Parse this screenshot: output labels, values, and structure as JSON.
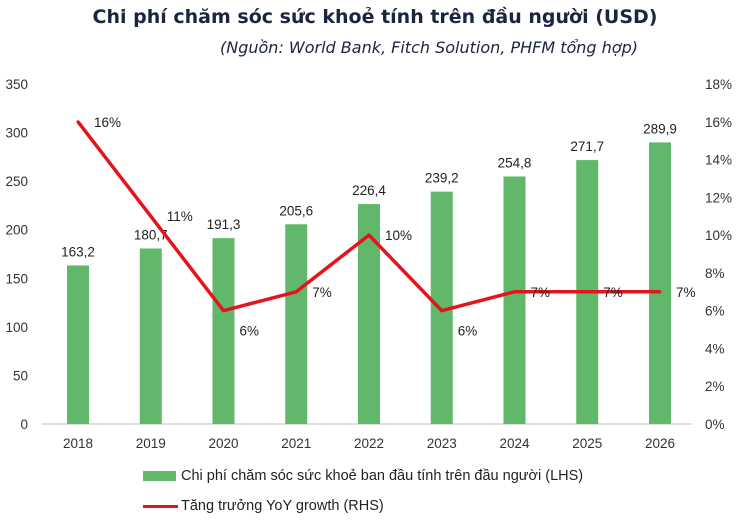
{
  "chart_data": {
    "type": "bar+line",
    "title": "Chi phí chăm sóc sức khoẻ tính trên đầu người (USD)",
    "subtitle": "(Nguồn: World Bank, Fitch Solution, PHFM tổng hợp)",
    "categories": [
      "2018",
      "2019",
      "2020",
      "2021",
      "2022",
      "2023",
      "2024",
      "2025",
      "2026"
    ],
    "series": [
      {
        "name": "Chi phí chăm sóc sức khoẻ ban đầu tính trên đầu người (LHS)",
        "type": "bar",
        "axis": "left",
        "color": "#62b86a",
        "values": [
          163.2,
          180.7,
          191.3,
          205.6,
          226.4,
          239.2,
          254.8,
          271.7,
          289.9
        ],
        "labels": [
          "163,2",
          "180,7",
          "191,3",
          "205,6",
          "226,4",
          "239,2",
          "254,8",
          "271,7",
          "289,9"
        ]
      },
      {
        "name": "Tăng trưởng YoY growth (RHS)",
        "type": "line",
        "axis": "right",
        "color": "#e3141b",
        "values": [
          16,
          11,
          6,
          7,
          10,
          6,
          7,
          7,
          7
        ],
        "labels": [
          "16%",
          "11%",
          "6%",
          "7%",
          "10%",
          "6%",
          "7%",
          "7%",
          "7%"
        ]
      }
    ],
    "yleft": {
      "min": 0,
      "max": 350,
      "ticks": [
        "0",
        "50",
        "100",
        "150",
        "200",
        "250",
        "300",
        "350"
      ]
    },
    "yright": {
      "min": 0,
      "max": 18,
      "ticks": [
        "0%",
        "2%",
        "4%",
        "6%",
        "8%",
        "10%",
        "12%",
        "14%",
        "16%",
        "18%"
      ]
    },
    "grid": false,
    "legend": "bottom"
  }
}
